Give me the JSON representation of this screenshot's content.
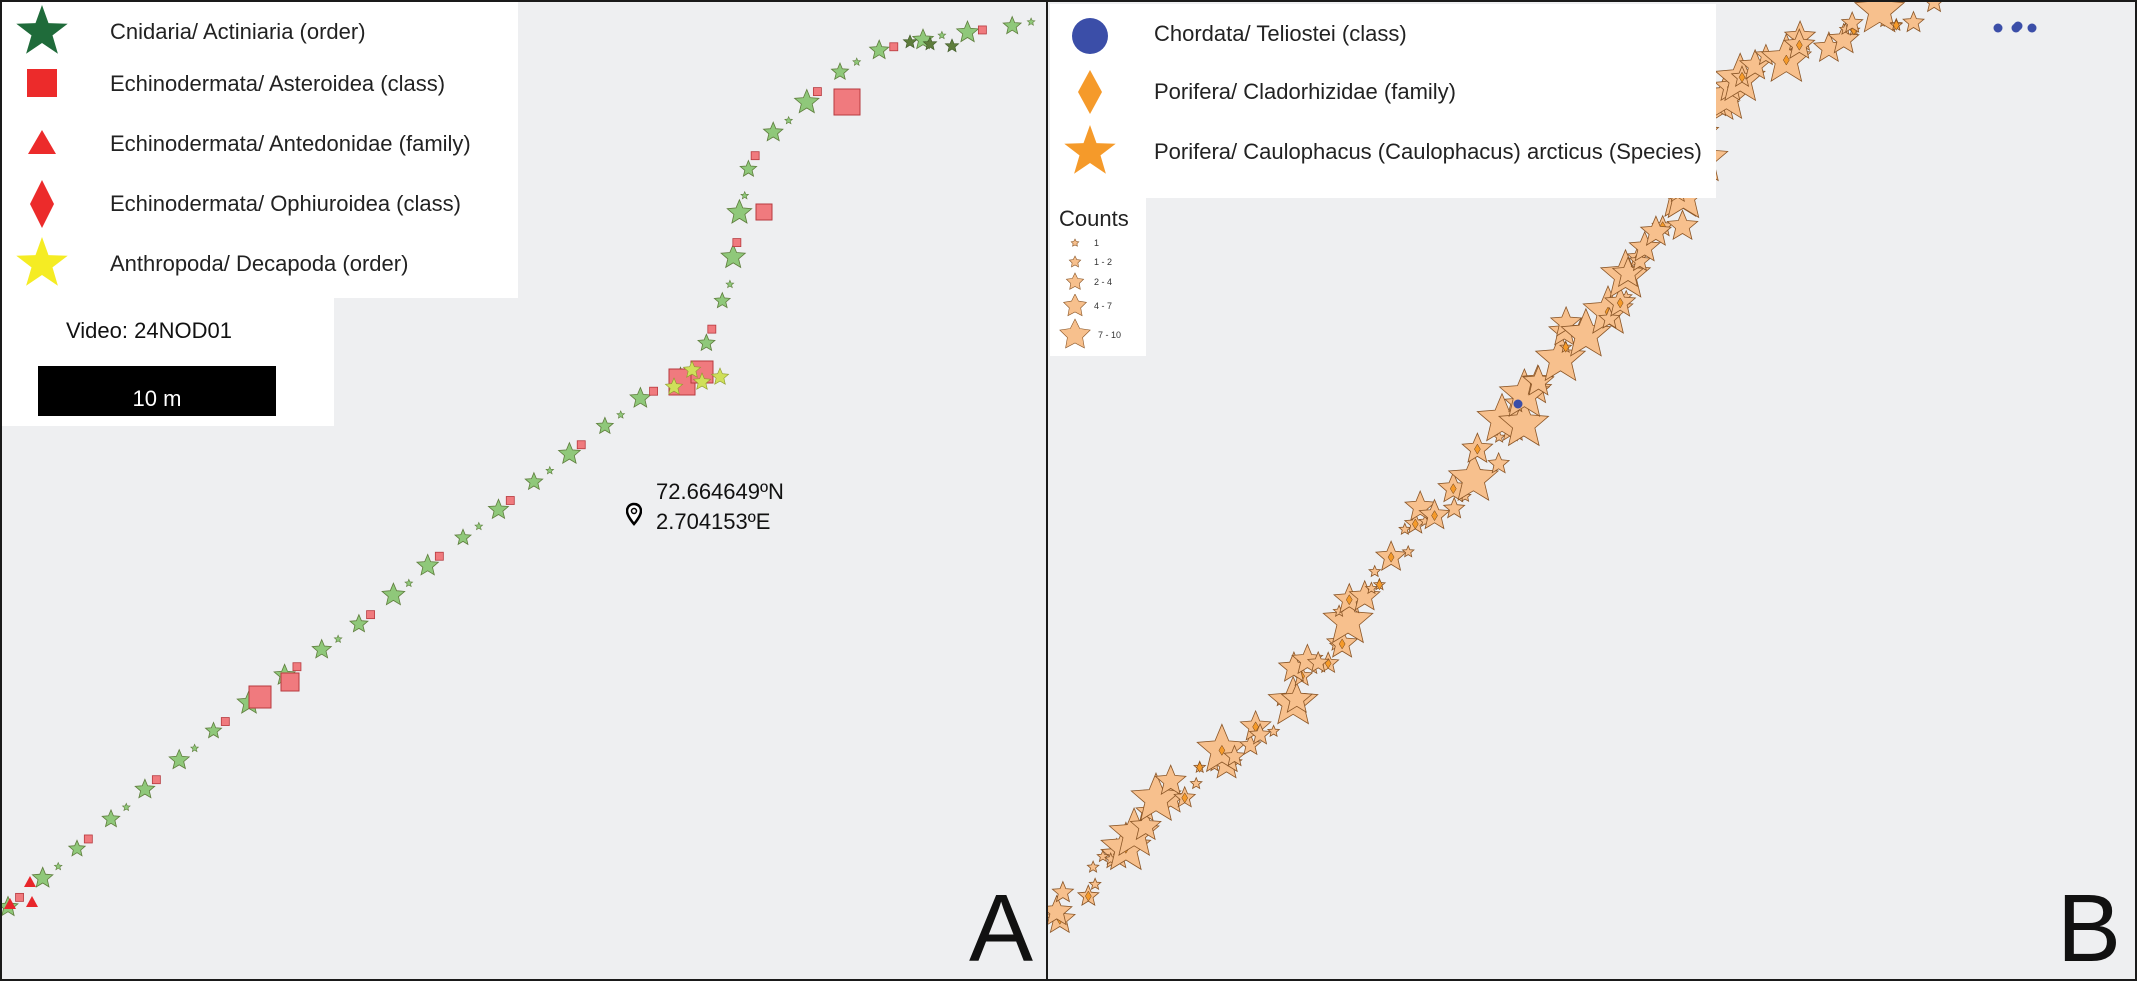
{
  "panel_a": {
    "letter": "A",
    "legend": [
      {
        "label": "Cnidaria/ Actiniaria (order)",
        "symbol": "star",
        "color": "#1f6b3a"
      },
      {
        "label": "Echinodermata/ Asteroidea (class)",
        "symbol": "square",
        "color": "#ec2b2b"
      },
      {
        "label": "Echinodermata/ Antedonidae (family)",
        "symbol": "triangle",
        "color": "#ec2b2b"
      },
      {
        "label": "Echinodermata/ Ophiuroidea (class)",
        "symbol": "diamond",
        "color": "#ec2b2b"
      },
      {
        "label": "Anthropoda/ Decapoda (order)",
        "symbol": "star",
        "color": "#f5ec23"
      }
    ],
    "video_label": "Video: 24NOD01",
    "scale_label": "10 m",
    "location": {
      "icon": "map-pin-icon",
      "lat": "72.664649ºN",
      "lon": "2.704153ºE"
    }
  },
  "panel_b": {
    "letter": "B",
    "legend": [
      {
        "label": "Chordata/ Teliostei (class)",
        "symbol": "circle",
        "color": "#3b4ea8"
      },
      {
        "label": "Porifera/ Cladorhizidae  (family)",
        "symbol": "diamond",
        "color": "#f59a2a"
      },
      {
        "label": "Porifera/ Caulophacus (Caulophacus) arcticus (Species)",
        "symbol": "star",
        "color": "#f59a2a"
      }
    ],
    "counts": {
      "title": "Counts",
      "classes": [
        "1",
        "1 - 2",
        "2 - 4",
        "4 - 7",
        "7 - 10"
      ]
    }
  },
  "colors": {
    "background": "#eeeff1",
    "cnidaria_fill": "#8fc87a",
    "cnidaria_dark": "#5e7d3c",
    "asteroidea_fill": "#f07a7e",
    "asteroidea_stroke": "#b73a3f",
    "antedonidae": "#e8262b",
    "decapoda": "#cfe05a",
    "porifera_fill": "#f7c08d",
    "porifera_stroke": "#8a5526",
    "teliostei": "#3b4ea8"
  }
}
